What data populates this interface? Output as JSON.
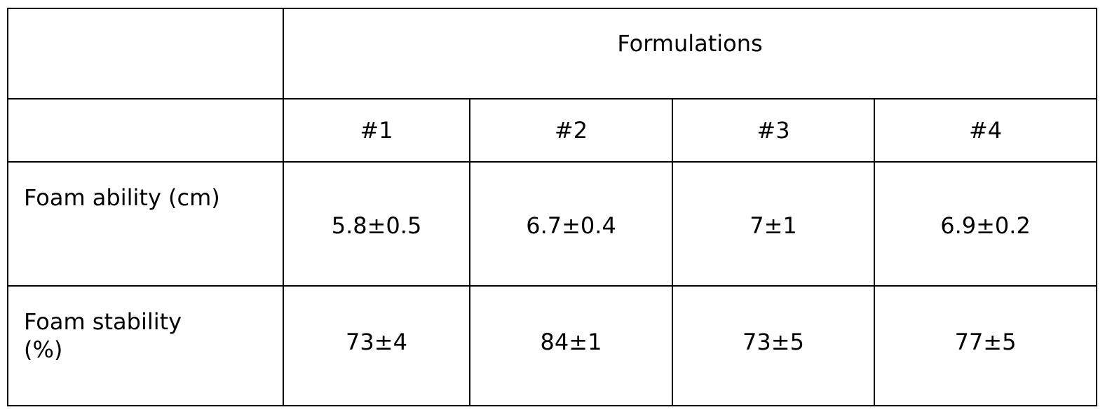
{
  "table": {
    "group_header": "Formulations",
    "columns": [
      "#1",
      "#2",
      "#3",
      "#4"
    ],
    "rows": [
      {
        "label": "Foam ability (cm)",
        "values": [
          "5.8±0.5",
          "6.7±0.4",
          "7±1",
          "6.9±0.2"
        ]
      },
      {
        "label": "Foam stability (%)",
        "values": [
          "73±4",
          "84±1",
          "73±5",
          "77±5"
        ]
      }
    ]
  }
}
